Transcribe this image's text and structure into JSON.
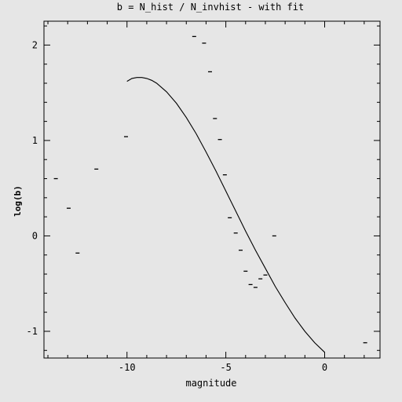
{
  "chart_data": {
    "type": "scatter",
    "title": "b = N_hist / N_invhist - with fit",
    "xlabel": "magnitude",
    "ylabel": "log(b)",
    "xlim": [
      -14.2,
      2.8
    ],
    "ylim": [
      -1.28,
      2.25
    ],
    "x_ticks": [
      -10,
      -5,
      0
    ],
    "x_tick_labels": [
      "-10",
      "-5",
      "0"
    ],
    "y_ticks": [
      -1,
      0,
      1,
      2
    ],
    "y_tick_labels": [
      "-1",
      "0",
      "1",
      "2"
    ],
    "grid": false,
    "points": [
      {
        "x": -13.6,
        "y": 0.6
      },
      {
        "x": -12.95,
        "y": 0.29
      },
      {
        "x": -12.5,
        "y": -0.18
      },
      {
        "x": -11.55,
        "y": 0.7
      },
      {
        "x": -10.05,
        "y": 1.04
      },
      {
        "x": -6.6,
        "y": 2.09
      },
      {
        "x": -6.1,
        "y": 2.02
      },
      {
        "x": -5.8,
        "y": 1.72
      },
      {
        "x": -5.55,
        "y": 1.23
      },
      {
        "x": -5.3,
        "y": 1.01
      },
      {
        "x": -5.05,
        "y": 0.64
      },
      {
        "x": -4.8,
        "y": 0.19
      },
      {
        "x": -4.5,
        "y": 0.03
      },
      {
        "x": -4.25,
        "y": -0.15
      },
      {
        "x": -4.0,
        "y": -0.37
      },
      {
        "x": -3.75,
        "y": -0.51
      },
      {
        "x": -3.5,
        "y": -0.54
      },
      {
        "x": -3.25,
        "y": -0.45
      },
      {
        "x": -3.0,
        "y": -0.41
      },
      {
        "x": -2.55,
        "y": 0.0
      },
      {
        "x": 2.05,
        "y": -1.12
      }
    ],
    "fit": {
      "x": [
        -10.0,
        -9.75,
        -9.5,
        -9.25,
        -9.0,
        -8.75,
        -8.5,
        -8.0,
        -7.5,
        -7.0,
        -6.5,
        -6.0,
        -5.5,
        -5.0,
        -4.5,
        -4.0,
        -3.5,
        -3.0,
        -2.5,
        -2.0,
        -1.5,
        -1.0,
        -0.5,
        0.0
      ],
      "y": [
        1.62,
        1.65,
        1.66,
        1.66,
        1.65,
        1.63,
        1.6,
        1.51,
        1.39,
        1.24,
        1.07,
        0.88,
        0.68,
        0.47,
        0.26,
        0.05,
        -0.15,
        -0.34,
        -0.53,
        -0.7,
        -0.86,
        -1.0,
        -1.12,
        -1.22
      ]
    }
  }
}
